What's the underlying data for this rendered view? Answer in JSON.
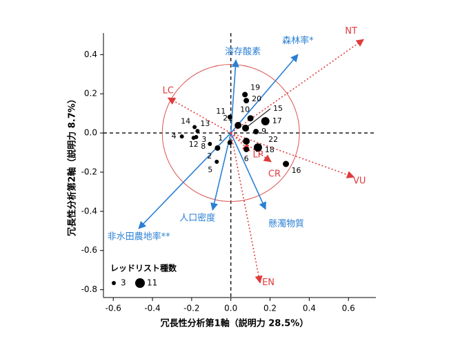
{
  "chart_data": {
    "type": "biplot",
    "xlabel": "冗長性分析第1軸（説明力 28.5%）",
    "ylabel": "冗長性分析第2軸（説明力 8.7%）",
    "xlim": [
      -0.65,
      0.74
    ],
    "ylim": [
      -0.84,
      0.51
    ],
    "xticks": [
      -0.6,
      -0.4,
      -0.2,
      {
        "value": 0,
        "label": "0.0"
      },
      0.2,
      0.4,
      0.6
    ],
    "yticks": [
      -0.8,
      -0.6,
      -0.4,
      -0.2,
      {
        "value": 0,
        "label": "0.0"
      },
      0.2,
      0.4
    ],
    "circle_radius": 0.35,
    "points": {
      "color": "#000000",
      "labels": [
        "1",
        "2",
        "3",
        "4",
        "5",
        "6",
        "8",
        "9",
        "10",
        "11",
        "12",
        "13",
        "14",
        "15",
        "16",
        "17",
        "18",
        "19",
        "20",
        "21",
        "22"
      ],
      "x": [
        -0.005,
        -0.068,
        -0.177,
        -0.25,
        -0.072,
        0.079,
        -0.107,
        0.128,
        0.1,
        -0.005,
        -0.19,
        -0.17,
        -0.185,
        0.075,
        0.281,
        0.176,
        0.138,
        0.072,
        0.079,
        0.037,
        0.079
      ],
      "y": [
        -0.049,
        -0.077,
        -0.021,
        -0.018,
        -0.147,
        -0.084,
        -0.056,
        0.007,
        0.075,
        0.081,
        -0.025,
        0.01,
        0.03,
        0.025,
        -0.158,
        0.06,
        -0.074,
        0.196,
        0.165,
        0.039,
        -0.042
      ],
      "size": [
        4,
        5,
        3,
        3,
        3,
        5,
        3,
        5,
        6,
        4,
        3,
        3,
        3,
        7,
        6,
        9,
        9,
        5,
        5,
        7,
        7
      ]
    },
    "environment_arrows": {
      "color": "#2a7fd4",
      "labels": [
        "森林率*",
        "溶存酸素",
        "人口密度",
        "懸濁物質",
        "非水田農地率**"
      ],
      "x": [
        0.342,
        0.026,
        -0.093,
        0.177,
        -0.47
      ],
      "y": [
        0.4,
        0.372,
        -0.393,
        -0.389,
        -0.488
      ]
    },
    "species_arrows": {
      "color": "#e03a3a",
      "labels": [
        "NT",
        "LC",
        "VU",
        "EN",
        "LP",
        "CR"
      ],
      "x": [
        0.677,
        -0.32,
        0.628,
        0.149,
        0.096,
        0.205
      ],
      "y": [
        0.477,
        0.179,
        -0.225,
        -0.765,
        -0.091,
        -0.147
      ]
    },
    "legend": {
      "title": "レッドリスト種数",
      "sizes": [
        3,
        11
      ]
    }
  }
}
